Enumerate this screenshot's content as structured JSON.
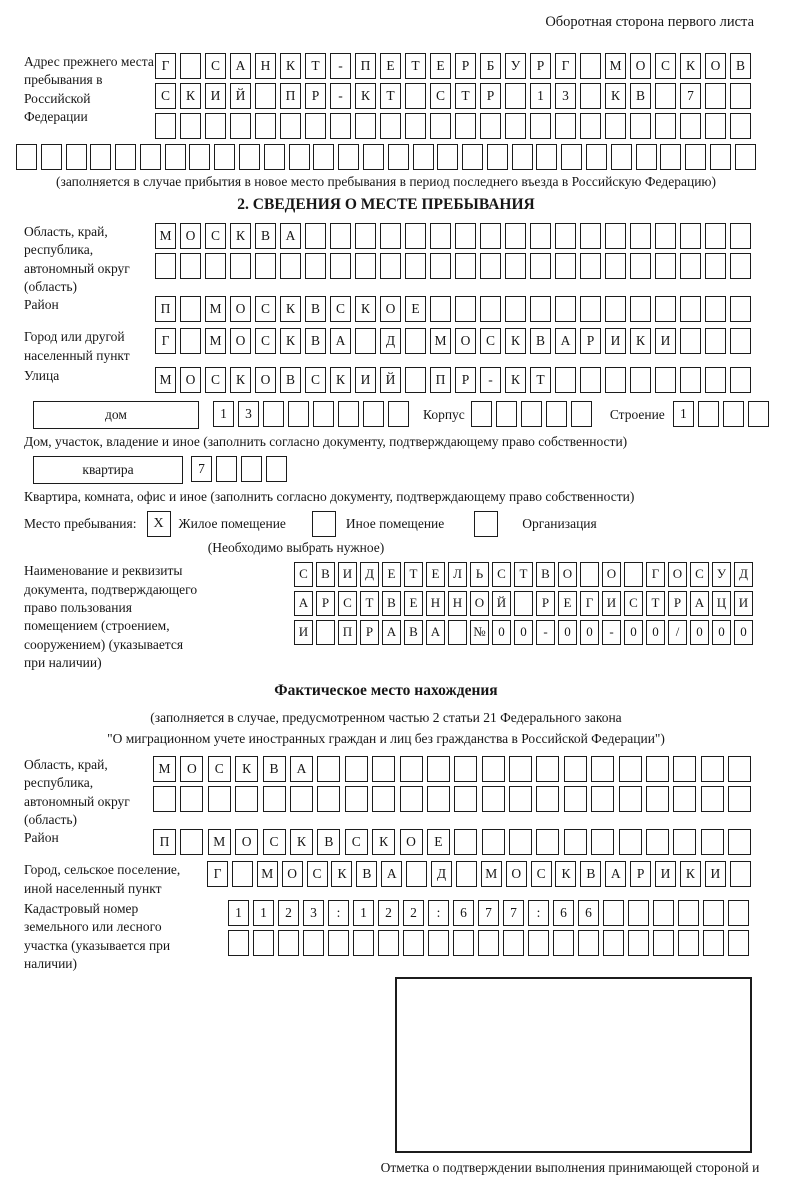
{
  "colors": {
    "ink": "#1c1c1c",
    "background": "#ffffff"
  },
  "page": {
    "top_note": "Оборотная сторона первого листа"
  },
  "prev_address": {
    "label": "Адрес прежнего места пребывания в Российской Федерации",
    "rows": [
      [
        "Г",
        "",
        "С",
        "А",
        "Н",
        "К",
        "Т",
        "-",
        "П",
        "Е",
        "Т",
        "Е",
        "Р",
        "Б",
        "У",
        "Р",
        "Г",
        "",
        "М",
        "О",
        "С",
        "К",
        "О",
        "В"
      ],
      [
        "С",
        "К",
        "И",
        "Й",
        "",
        "П",
        "Р",
        "-",
        "К",
        "Т",
        "",
        "С",
        "Т",
        "Р",
        "",
        "1",
        "3",
        "",
        "К",
        "В",
        "",
        "7",
        "",
        ""
      ],
      [
        "",
        "",
        "",
        "",
        "",
        "",
        "",
        "",
        "",
        "",
        "",
        "",
        "",
        "",
        "",
        "",
        "",
        "",
        "",
        "",
        "",
        "",
        "",
        ""
      ]
    ],
    "row_full": [
      "",
      "",
      "",
      "",
      "",
      "",
      "",
      "",
      "",
      "",
      "",
      "",
      "",
      "",
      "",
      "",
      "",
      "",
      "",
      "",
      "",
      "",
      "",
      "",
      "",
      "",
      "",
      "",
      "",
      ""
    ],
    "note": "(заполняется в случае прибытия в новое место пребывания в период последнего въезда в Российскую Федерацию)"
  },
  "section2": {
    "title": "2. СВЕДЕНИЯ О МЕСТЕ ПРЕБЫВАНИЯ",
    "region": {
      "label": "Область, край, республика, автономный округ (область)",
      "rows": [
        [
          "М",
          "О",
          "С",
          "К",
          "В",
          "А",
          "",
          "",
          "",
          "",
          "",
          "",
          "",
          "",
          "",
          "",
          "",
          "",
          "",
          "",
          "",
          "",
          "",
          ""
        ],
        [
          "",
          "",
          "",
          "",
          "",
          "",
          "",
          "",
          "",
          "",
          "",
          "",
          "",
          "",
          "",
          "",
          "",
          "",
          "",
          "",
          "",
          "",
          "",
          ""
        ]
      ]
    },
    "district": {
      "label": "Район",
      "row": [
        "П",
        "",
        "М",
        "О",
        "С",
        "К",
        "В",
        "С",
        "К",
        "О",
        "Е",
        "",
        "",
        "",
        "",
        "",
        "",
        "",
        "",
        "",
        "",
        "",
        "",
        ""
      ]
    },
    "city": {
      "label": "Город или другой населенный пункт",
      "row": [
        "Г",
        "",
        "М",
        "О",
        "С",
        "К",
        "В",
        "А",
        "",
        "Д",
        "",
        "М",
        "О",
        "С",
        "К",
        "В",
        "А",
        "Р",
        "И",
        "К",
        "И",
        "",
        "",
        ""
      ]
    },
    "street": {
      "label": "Улица",
      "row": [
        "М",
        "О",
        "С",
        "К",
        "О",
        "В",
        "С",
        "К",
        "И",
        "Й",
        "",
        "П",
        "Р",
        "-",
        "К",
        "Т",
        "",
        "",
        "",
        "",
        "",
        "",
        "",
        ""
      ]
    },
    "house": {
      "box_label": "дом",
      "cells": [
        "1",
        "3",
        "",
        "",
        "",
        "",
        "",
        ""
      ],
      "korpus_label": "Корпус",
      "korpus_cells": [
        "",
        "",
        "",
        "",
        ""
      ],
      "stroenie_label": "Строение",
      "stroenie_cells": [
        "1",
        "",
        "",
        ""
      ],
      "note": "Дом, участок, владение и иное (заполнить согласно документу, подтверждающему право собственности)"
    },
    "apartment": {
      "box_label": "квартира",
      "cells": [
        "7",
        "",
        "",
        ""
      ],
      "note": "Квартира, комната, офис и иное (заполнить согласно документу, подтверждающему право собственности)"
    },
    "stay_type": {
      "label": "Место пребывания:",
      "options": [
        {
          "checked": "X",
          "label": "Жилое помещение"
        },
        {
          "checked": "",
          "label": "Иное помещение"
        },
        {
          "checked": "",
          "label": "Организация"
        }
      ],
      "note": "(Необходимо выбрать нужное)"
    },
    "document": {
      "label": "Наименование и реквизиты документа, подтверждающего право пользования помещением (строением, сооружением) (указывается при наличии)",
      "rows": [
        [
          "С",
          "В",
          "И",
          "Д",
          "Е",
          "Т",
          "Е",
          "Л",
          "Ь",
          "С",
          "Т",
          "В",
          "О",
          "",
          "О",
          "",
          "Г",
          "О",
          "С",
          "У",
          "Д"
        ],
        [
          "А",
          "Р",
          "С",
          "Т",
          "В",
          "Е",
          "Н",
          "Н",
          "О",
          "Й",
          "",
          "Р",
          "Е",
          "Г",
          "И",
          "С",
          "Т",
          "Р",
          "А",
          "Ц",
          "И"
        ],
        [
          "И",
          "",
          "П",
          "Р",
          "А",
          "В",
          "А",
          "",
          "№",
          "0",
          "0",
          "-",
          "0",
          "0",
          "-",
          "0",
          "0",
          "/",
          "0",
          "0",
          "0"
        ]
      ]
    }
  },
  "actual_location": {
    "title": "Фактическое место нахождения",
    "note1": "(заполняется в случае, предусмотренном частью 2 статьи 21 Федерального закона",
    "note2": "\"О миграционном учете иностранных граждан и лиц без гражданства в Российской Федерации\")",
    "region": {
      "label": "Область, край, республика, автономный округ (область)",
      "rows": [
        [
          "М",
          "О",
          "С",
          "К",
          "В",
          "А",
          "",
          "",
          "",
          "",
          "",
          "",
          "",
          "",
          "",
          "",
          "",
          "",
          "",
          "",
          "",
          ""
        ],
        [
          "",
          "",
          "",
          "",
          "",
          "",
          "",
          "",
          "",
          "",
          "",
          "",
          "",
          "",
          "",
          "",
          "",
          "",
          "",
          "",
          "",
          ""
        ]
      ]
    },
    "district": {
      "label": "Район",
      "row": [
        "П",
        "",
        "М",
        "О",
        "С",
        "К",
        "В",
        "С",
        "К",
        "О",
        "Е",
        "",
        "",
        "",
        "",
        "",
        "",
        "",
        "",
        "",
        "",
        ""
      ]
    },
    "city": {
      "label": "Город, сельское поселение, иной населенный пункт",
      "row": [
        "Г",
        "",
        "М",
        "О",
        "С",
        "К",
        "В",
        "А",
        "",
        "Д",
        "",
        "М",
        "О",
        "С",
        "К",
        "В",
        "А",
        "Р",
        "И",
        "К",
        "И",
        ""
      ]
    },
    "cadastral": {
      "label": "Кадастровый номер земельного или лесного участка (указывается при наличии)",
      "rows": [
        [
          "1",
          "1",
          "2",
          "3",
          ":",
          "1",
          "2",
          "2",
          ":",
          "6",
          "7",
          "7",
          ":",
          "6",
          "6",
          "",
          "",
          "",
          "",
          "",
          ""
        ],
        [
          "",
          "",
          "",
          "",
          "",
          "",
          "",
          "",
          "",
          "",
          "",
          "",
          "",
          "",
          "",
          "",
          "",
          "",
          "",
          "",
          ""
        ]
      ]
    },
    "stamp_note": "Отметка о подтверждении выполнения принимающей стороной и иностранным гражданином или лицом без гражданства действий, необходимых для его постановки на учет по месту пребывания"
  }
}
